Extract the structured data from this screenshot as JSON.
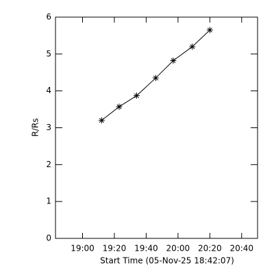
{
  "chart_data": {
    "type": "scatter-line",
    "x_label": "Start Time (05-Nov-25 18:42:07)",
    "y_label": "R/Rs",
    "x": [
      "19:12",
      "19:23",
      "19:34",
      "19:46",
      "19:57",
      "20:09",
      "20:20"
    ],
    "values": [
      3.2,
      3.57,
      3.87,
      4.35,
      4.82,
      5.2,
      5.65
    ],
    "color": "#000000",
    "xlim": [
      "18:43",
      "20:50"
    ],
    "xticks": [
      "19:00",
      "19:20",
      "19:40",
      "20:00",
      "20:20",
      "20:40"
    ],
    "ylim": [
      0,
      6
    ],
    "yticks": [
      0,
      1,
      2,
      3,
      4,
      5,
      6
    ]
  }
}
